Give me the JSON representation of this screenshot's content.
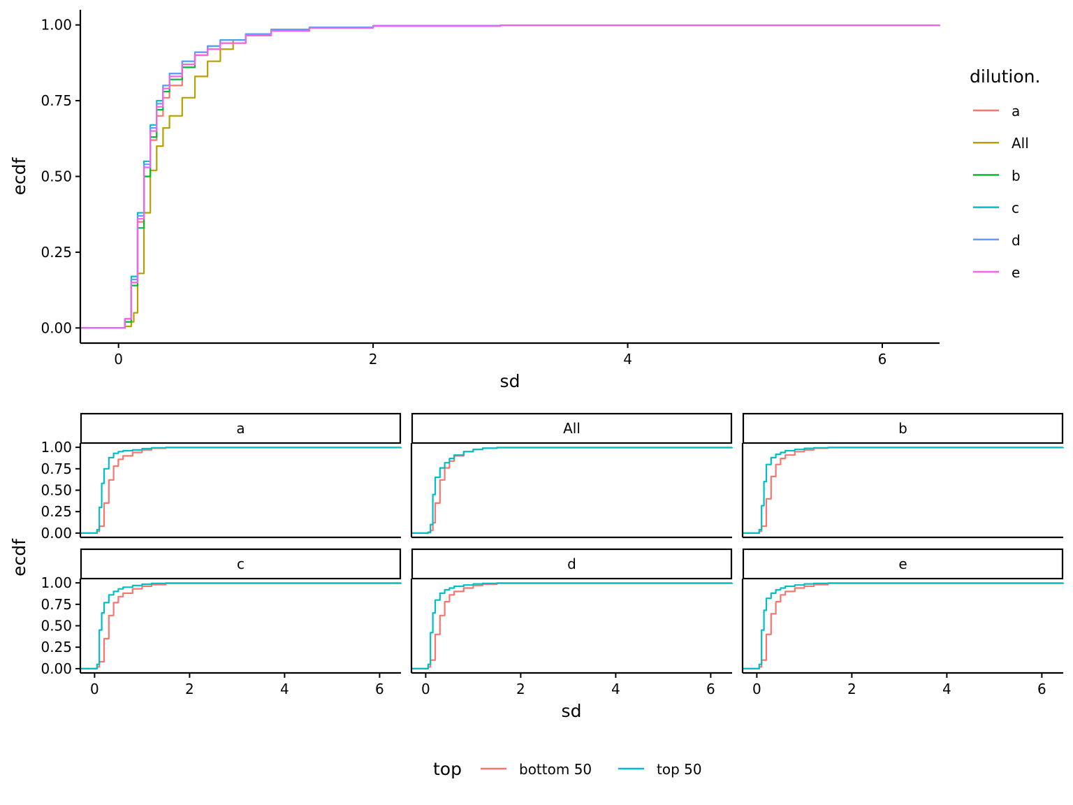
{
  "chart_data": [
    {
      "type": "line",
      "xlabel": "sd",
      "ylabel": "ecdf",
      "xlim": [
        -0.3,
        6.45
      ],
      "ylim": [
        -0.05,
        1.05
      ],
      "x_ticks": [
        0,
        2,
        4,
        6
      ],
      "y_ticks": [
        "0.00",
        "0.25",
        "0.50",
        "0.75",
        "1.00"
      ],
      "y_tick_values": [
        0,
        0.25,
        0.5,
        0.75,
        1.0
      ],
      "legend_title": "dilution.",
      "legend_position": "right",
      "grid": false,
      "series": [
        {
          "name": "a",
          "color": "#F8766D",
          "x": [
            -0.3,
            0.0,
            0.05,
            0.1,
            0.15,
            0.2,
            0.25,
            0.3,
            0.35,
            0.4,
            0.5,
            0.6,
            0.7,
            0.8,
            1.0,
            1.2,
            1.5,
            2.0,
            3.0,
            6.45
          ],
          "y": [
            0,
            0,
            0.02,
            0.15,
            0.35,
            0.5,
            0.62,
            0.7,
            0.76,
            0.8,
            0.86,
            0.9,
            0.92,
            0.94,
            0.97,
            0.985,
            0.992,
            0.997,
            0.999,
            1.0
          ]
        },
        {
          "name": "All",
          "color": "#B79F00",
          "x": [
            -0.3,
            0.0,
            0.05,
            0.1,
            0.12,
            0.15,
            0.2,
            0.25,
            0.3,
            0.35,
            0.4,
            0.5,
            0.6,
            0.7,
            0.8,
            0.9,
            1.0,
            1.2,
            1.5,
            2.0,
            3.0,
            6.45
          ],
          "y": [
            0,
            0,
            0.005,
            0.02,
            0.05,
            0.18,
            0.38,
            0.52,
            0.6,
            0.66,
            0.7,
            0.76,
            0.83,
            0.88,
            0.92,
            0.95,
            0.97,
            0.985,
            0.992,
            0.997,
            0.999,
            1.0
          ]
        },
        {
          "name": "b",
          "color": "#00BA38",
          "x": [
            -0.3,
            0.0,
            0.05,
            0.1,
            0.15,
            0.2,
            0.25,
            0.3,
            0.35,
            0.4,
            0.5,
            0.6,
            0.7,
            0.8,
            1.0,
            1.2,
            1.5,
            2.0,
            3.0,
            6.45
          ],
          "y": [
            0,
            0,
            0.02,
            0.14,
            0.33,
            0.5,
            0.63,
            0.72,
            0.78,
            0.82,
            0.86,
            0.9,
            0.93,
            0.95,
            0.97,
            0.985,
            0.992,
            0.997,
            0.999,
            1.0
          ]
        },
        {
          "name": "c",
          "color": "#00BFC4",
          "x": [
            -0.3,
            0.0,
            0.05,
            0.1,
            0.15,
            0.2,
            0.25,
            0.3,
            0.35,
            0.4,
            0.5,
            0.6,
            0.7,
            0.8,
            1.0,
            1.2,
            1.5,
            2.0,
            3.0,
            6.45
          ],
          "y": [
            0,
            0,
            0.03,
            0.17,
            0.38,
            0.55,
            0.67,
            0.75,
            0.8,
            0.84,
            0.88,
            0.91,
            0.93,
            0.95,
            0.97,
            0.985,
            0.992,
            0.997,
            0.999,
            1.0
          ]
        },
        {
          "name": "d",
          "color": "#619CFF",
          "x": [
            -0.3,
            0.0,
            0.05,
            0.1,
            0.15,
            0.2,
            0.25,
            0.3,
            0.35,
            0.4,
            0.5,
            0.6,
            0.7,
            0.8,
            1.0,
            1.2,
            1.5,
            2.0,
            3.0,
            6.45
          ],
          "y": [
            0,
            0,
            0.03,
            0.16,
            0.37,
            0.54,
            0.66,
            0.74,
            0.8,
            0.84,
            0.88,
            0.91,
            0.93,
            0.95,
            0.97,
            0.985,
            0.992,
            0.997,
            0.999,
            1.0
          ]
        },
        {
          "name": "e",
          "color": "#F564E3",
          "x": [
            -0.3,
            0.0,
            0.05,
            0.1,
            0.15,
            0.2,
            0.25,
            0.3,
            0.35,
            0.4,
            0.5,
            0.6,
            0.7,
            0.8,
            1.0,
            1.2,
            1.5,
            2.0,
            3.0,
            6.45
          ],
          "y": [
            0,
            0,
            0.03,
            0.15,
            0.36,
            0.53,
            0.65,
            0.73,
            0.79,
            0.83,
            0.87,
            0.9,
            0.92,
            0.94,
            0.965,
            0.98,
            0.99,
            0.996,
            0.999,
            1.0
          ]
        }
      ]
    },
    {
      "type": "line",
      "facet": "wrap",
      "xlabel": "sd",
      "ylabel": "ecdf",
      "xlim": [
        -0.3,
        6.45
      ],
      "ylim": [
        -0.05,
        1.05
      ],
      "x_ticks": [
        0,
        2,
        4,
        6
      ],
      "y_ticks": [
        "0.00",
        "0.25",
        "0.50",
        "0.75",
        "1.00"
      ],
      "y_tick_values": [
        0,
        0.25,
        0.5,
        0.75,
        1.0
      ],
      "legend_title": "top",
      "legend_position": "bottom",
      "grid": false,
      "legend": [
        {
          "name": "bottom 50",
          "color": "#F8766D"
        },
        {
          "name": "top 50",
          "color": "#00BFC4"
        }
      ],
      "panels": [
        {
          "label": "a",
          "series": [
            {
              "name": "bottom 50",
              "color": "#F8766D",
              "x": [
                -0.3,
                0.0,
                0.05,
                0.1,
                0.2,
                0.3,
                0.4,
                0.5,
                0.6,
                0.8,
                1.0,
                1.2,
                1.5,
                6.45
              ],
              "y": [
                0,
                0,
                0.02,
                0.08,
                0.35,
                0.62,
                0.78,
                0.86,
                0.9,
                0.94,
                0.97,
                0.99,
                0.997,
                1.0
              ]
            },
            {
              "name": "top 50",
              "color": "#00BFC4",
              "x": [
                -0.3,
                0.0,
                0.05,
                0.1,
                0.15,
                0.2,
                0.3,
                0.4,
                0.5,
                0.6,
                0.8,
                1.0,
                1.2,
                1.5,
                6.45
              ],
              "y": [
                0,
                0,
                0.04,
                0.3,
                0.58,
                0.75,
                0.88,
                0.93,
                0.95,
                0.96,
                0.97,
                0.985,
                0.995,
                0.999,
                1.0
              ]
            }
          ]
        },
        {
          "label": "All",
          "series": [
            {
              "name": "bottom 50",
              "color": "#F8766D",
              "x": [
                -0.3,
                0.0,
                0.05,
                0.1,
                0.15,
                0.2,
                0.3,
                0.4,
                0.5,
                0.6,
                0.8,
                1.0,
                1.2,
                1.5,
                6.45
              ],
              "y": [
                0,
                0,
                0.005,
                0.03,
                0.12,
                0.35,
                0.62,
                0.76,
                0.84,
                0.9,
                0.95,
                0.975,
                0.99,
                0.997,
                1.0
              ]
            },
            {
              "name": "top 50",
              "color": "#00BFC4",
              "x": [
                -0.3,
                0.0,
                0.05,
                0.1,
                0.15,
                0.2,
                0.3,
                0.4,
                0.5,
                0.6,
                0.8,
                1.0,
                1.2,
                1.5,
                6.45
              ],
              "y": [
                0,
                0,
                0.01,
                0.1,
                0.45,
                0.65,
                0.76,
                0.82,
                0.87,
                0.91,
                0.95,
                0.975,
                0.99,
                0.997,
                1.0
              ]
            }
          ]
        },
        {
          "label": "b",
          "series": [
            {
              "name": "bottom 50",
              "color": "#F8766D",
              "x": [
                -0.3,
                0.0,
                0.05,
                0.1,
                0.2,
                0.3,
                0.4,
                0.5,
                0.6,
                0.8,
                1.0,
                1.2,
                1.5,
                6.45
              ],
              "y": [
                0,
                0,
                0.02,
                0.08,
                0.4,
                0.66,
                0.8,
                0.87,
                0.91,
                0.95,
                0.97,
                0.99,
                0.997,
                1.0
              ]
            },
            {
              "name": "top 50",
              "color": "#00BFC4",
              "x": [
                -0.3,
                0.0,
                0.05,
                0.1,
                0.15,
                0.2,
                0.3,
                0.4,
                0.5,
                0.6,
                0.8,
                1.0,
                1.2,
                1.5,
                6.45
              ],
              "y": [
                0,
                0,
                0.04,
                0.32,
                0.6,
                0.8,
                0.88,
                0.92,
                0.94,
                0.96,
                0.975,
                0.988,
                0.995,
                0.999,
                1.0
              ]
            }
          ]
        },
        {
          "label": "c",
          "series": [
            {
              "name": "bottom 50",
              "color": "#F8766D",
              "x": [
                -0.3,
                0.0,
                0.05,
                0.1,
                0.2,
                0.3,
                0.4,
                0.5,
                0.6,
                0.8,
                1.0,
                1.2,
                1.5,
                6.45
              ],
              "y": [
                0,
                0,
                0.02,
                0.08,
                0.35,
                0.62,
                0.77,
                0.84,
                0.88,
                0.93,
                0.96,
                0.98,
                0.995,
                1.0
              ]
            },
            {
              "name": "top 50",
              "color": "#00BFC4",
              "x": [
                -0.3,
                0.0,
                0.05,
                0.1,
                0.15,
                0.2,
                0.3,
                0.4,
                0.5,
                0.6,
                0.8,
                1.0,
                1.2,
                1.5,
                6.45
              ],
              "y": [
                0,
                0,
                0.05,
                0.45,
                0.65,
                0.77,
                0.86,
                0.9,
                0.93,
                0.95,
                0.97,
                0.985,
                0.995,
                0.999,
                1.0
              ]
            }
          ]
        },
        {
          "label": "d",
          "series": [
            {
              "name": "bottom 50",
              "color": "#F8766D",
              "x": [
                -0.3,
                0.0,
                0.05,
                0.1,
                0.2,
                0.3,
                0.4,
                0.5,
                0.6,
                0.8,
                1.0,
                1.2,
                1.5,
                6.45
              ],
              "y": [
                0,
                0,
                0.02,
                0.1,
                0.4,
                0.62,
                0.78,
                0.86,
                0.9,
                0.94,
                0.97,
                0.985,
                0.995,
                1.0
              ]
            },
            {
              "name": "top 50",
              "color": "#00BFC4",
              "x": [
                -0.3,
                0.0,
                0.05,
                0.1,
                0.15,
                0.2,
                0.3,
                0.4,
                0.5,
                0.6,
                0.8,
                1.0,
                1.2,
                1.5,
                6.45
              ],
              "y": [
                0,
                0,
                0.05,
                0.42,
                0.65,
                0.8,
                0.88,
                0.92,
                0.94,
                0.96,
                0.975,
                0.988,
                0.995,
                0.999,
                1.0
              ]
            }
          ]
        },
        {
          "label": "e",
          "series": [
            {
              "name": "bottom 50",
              "color": "#F8766D",
              "x": [
                -0.3,
                0.0,
                0.05,
                0.1,
                0.2,
                0.3,
                0.4,
                0.5,
                0.6,
                0.8,
                1.0,
                1.2,
                1.5,
                6.45
              ],
              "y": [
                0,
                0,
                0.02,
                0.1,
                0.4,
                0.64,
                0.78,
                0.86,
                0.9,
                0.94,
                0.96,
                0.98,
                0.995,
                1.0
              ]
            },
            {
              "name": "top 50",
              "color": "#00BFC4",
              "x": [
                -0.3,
                0.0,
                0.05,
                0.1,
                0.15,
                0.2,
                0.3,
                0.4,
                0.5,
                0.6,
                0.8,
                1.0,
                1.2,
                1.5,
                6.45
              ],
              "y": [
                0,
                0,
                0.05,
                0.45,
                0.68,
                0.82,
                0.88,
                0.92,
                0.94,
                0.96,
                0.975,
                0.988,
                0.995,
                0.999,
                1.0
              ]
            }
          ]
        }
      ]
    }
  ]
}
